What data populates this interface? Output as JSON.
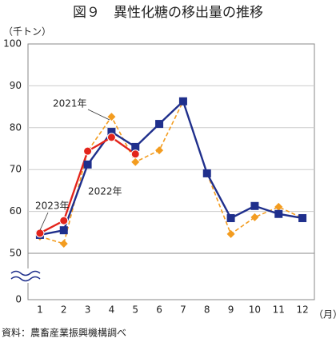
{
  "chart_data": {
    "type": "line",
    "title": "図９　異性化糖の移出量の推移",
    "y_axis_label": "（千トン）",
    "x_axis_label": "（月）",
    "source": "資料：農畜産業振興機構調べ",
    "categories": [
      "1",
      "2",
      "3",
      "4",
      "5",
      "6",
      "7",
      "8",
      "9",
      "10",
      "11",
      "12"
    ],
    "series": [
      {
        "name": "2021年",
        "color": "#f39c1f",
        "dashed": true,
        "marker": "diamond",
        "values": [
          54.0,
          52.3,
          74.4,
          82.6,
          71.8,
          74.6,
          86.3,
          69.1,
          54.6,
          58.6,
          61.1,
          58.4
        ]
      },
      {
        "name": "2022年",
        "color": "#1f2f8c",
        "dashed": false,
        "marker": "square",
        "values": [
          54.4,
          55.5,
          71.2,
          79.0,
          75.4,
          80.9,
          86.3,
          69.1,
          58.4,
          61.3,
          59.4,
          58.4
        ]
      },
      {
        "name": "2023年",
        "color": "#e3241b",
        "dashed": false,
        "marker": "circle",
        "values": [
          54.8,
          57.8,
          74.4,
          77.7,
          73.7,
          null,
          null,
          null,
          null,
          null,
          null,
          null
        ]
      }
    ],
    "ylim": [
      0,
      100
    ],
    "y_axis_break": true,
    "yticks": [
      0,
      50,
      60,
      70,
      80,
      90,
      100
    ],
    "grid": true
  }
}
